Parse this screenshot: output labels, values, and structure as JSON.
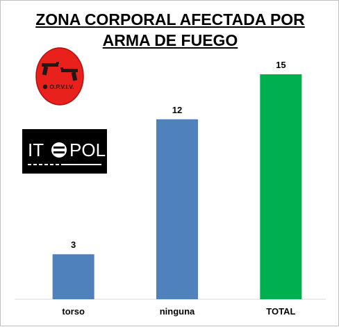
{
  "title_line1": "ZONA CORPORAL AFECTADA POR",
  "title_line2": "ARMA DE FUEGO",
  "logos": {
    "opviv": {
      "text": "O.P.V.I.V."
    },
    "itepol": {
      "text": "ITEPOL"
    }
  },
  "colors": {
    "blue": "#4f81bd",
    "green": "#00b050",
    "logo_red": "#e8211c"
  },
  "chart_data": {
    "type": "bar",
    "title": "ZONA CORPORAL AFECTADA POR ARMA DE FUEGO",
    "categories": [
      "torso",
      "ninguna",
      "TOTAL"
    ],
    "values": [
      3,
      12,
      15
    ],
    "bar_colors": [
      "#4f81bd",
      "#4f81bd",
      "#00b050"
    ],
    "data_labels": [
      "3",
      "12",
      "15"
    ],
    "ylim": [
      0,
      15
    ],
    "grid": false,
    "legend": "none"
  }
}
